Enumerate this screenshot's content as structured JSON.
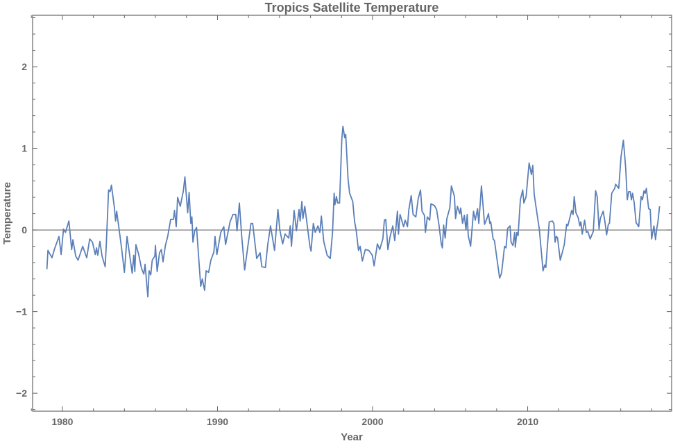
{
  "chart_data": {
    "type": "line",
    "title": "Tropics Satellite Temperature",
    "xlabel": "Year",
    "ylabel": "Temperature",
    "xlim": [
      1978.08,
      2019.28
    ],
    "ylim": [
      -2.22,
      2.63
    ],
    "xticks": [
      1980,
      1990,
      2000,
      2010
    ],
    "xtick_labels": [
      "1980",
      "1990",
      "2000",
      "2010"
    ],
    "yticks": [
      -2,
      -1,
      0,
      1,
      2
    ],
    "ytick_labels": [
      "−2",
      "−1",
      "0",
      "1",
      "2"
    ],
    "grid": false,
    "zero_line": true,
    "line_color": "#5b7fb8",
    "axis_color": "#666666",
    "x": [
      1979.0,
      1979.07,
      1979.33,
      1979.5,
      1979.78,
      1979.92,
      1980.07,
      1980.2,
      1980.42,
      1980.6,
      1980.68,
      1980.86,
      1981.01,
      1981.31,
      1981.57,
      1981.76,
      1981.94,
      1982.12,
      1982.2,
      1982.28,
      1982.42,
      1982.56,
      1982.76,
      1982.83,
      1982.98,
      1983.08,
      1983.16,
      1983.35,
      1983.43,
      1983.5,
      1983.8,
      1984.0,
      1984.17,
      1984.37,
      1984.5,
      1984.6,
      1984.67,
      1984.74,
      1984.92,
      1985.1,
      1985.25,
      1985.33,
      1985.51,
      1985.59,
      1985.7,
      1985.79,
      1985.96,
      1986.0,
      1986.11,
      1986.26,
      1986.38,
      1986.49,
      1986.64,
      1986.79,
      1986.98,
      1987.16,
      1987.23,
      1987.34,
      1987.43,
      1987.6,
      1987.8,
      1987.9,
      1988.08,
      1988.17,
      1988.28,
      1988.35,
      1988.42,
      1988.53,
      1988.65,
      1988.92,
      1989.02,
      1989.17,
      1989.27,
      1989.43,
      1989.57,
      1989.77,
      1989.84,
      1989.96,
      1990.21,
      1990.41,
      1990.52,
      1990.81,
      1991.0,
      1991.18,
      1991.26,
      1991.41,
      1991.56,
      1991.75,
      1991.93,
      1992.16,
      1992.27,
      1992.53,
      1992.75,
      1992.86,
      1993.09,
      1993.24,
      1993.42,
      1993.68,
      1993.9,
      1994.02,
      1994.2,
      1994.36,
      1994.59,
      1994.69,
      1994.77,
      1994.94,
      1995.09,
      1995.26,
      1995.33,
      1995.44,
      1995.51,
      1995.63,
      1995.96,
      1996.03,
      1996.18,
      1996.3,
      1996.48,
      1996.6,
      1996.7,
      1996.85,
      1997.07,
      1997.27,
      1997.42,
      1997.52,
      1997.57,
      1997.67,
      1997.75,
      1997.87,
      1998.02,
      1998.09,
      1998.2,
      1998.27,
      1998.42,
      1998.52,
      1998.72,
      1998.84,
      1998.94,
      1999.09,
      1999.2,
      1999.34,
      1999.53,
      1999.76,
      1999.98,
      2000.1,
      2000.31,
      2000.46,
      2000.66,
      2000.76,
      2000.85,
      2000.99,
      2001.13,
      2001.3,
      2001.43,
      2001.6,
      2001.67,
      2001.77,
      2002.0,
      2002.1,
      2002.25,
      2002.34,
      2002.49,
      2002.61,
      2002.79,
      2002.94,
      2003.09,
      2003.19,
      2003.34,
      2003.41,
      2003.53,
      2003.68,
      2003.76,
      2003.98,
      2004.13,
      2004.28,
      2004.43,
      2004.5,
      2004.58,
      2004.68,
      2004.79,
      2004.98,
      2005.08,
      2005.28,
      2005.35,
      2005.47,
      2005.62,
      2005.68,
      2005.8,
      2005.92,
      2006.02,
      2006.1,
      2006.17,
      2006.32,
      2006.51,
      2006.62,
      2006.77,
      2006.85,
      2007.02,
      2007.22,
      2007.37,
      2007.47,
      2007.56,
      2007.62,
      2007.77,
      2007.86,
      2007.96,
      2008.19,
      2008.31,
      2008.41,
      2008.51,
      2008.6,
      2008.71,
      2008.86,
      2008.93,
      2009.05,
      2009.16,
      2009.2,
      2009.3,
      2009.38,
      2009.53,
      2009.68,
      2009.75,
      2009.9,
      2010.09,
      2010.24,
      2010.33,
      2010.42,
      2010.54,
      2010.75,
      2010.99,
      2011.09,
      2011.17,
      2011.39,
      2011.59,
      2011.69,
      2011.77,
      2011.84,
      2011.92,
      2012.1,
      2012.21,
      2012.36,
      2012.51,
      2012.59,
      2012.84,
      2012.93,
      2013.0,
      2013.11,
      2013.26,
      2013.36,
      2013.43,
      2013.52,
      2013.67,
      2013.78,
      2013.88,
      2014.03,
      2014.23,
      2014.38,
      2014.48,
      2014.6,
      2014.68,
      2014.87,
      2014.98,
      2015.09,
      2015.2,
      2015.27,
      2015.42,
      2015.61,
      2015.67,
      2015.87,
      2016.02,
      2016.17,
      2016.32,
      2016.42,
      2016.51,
      2016.61,
      2016.69,
      2016.76,
      2016.87,
      2016.99,
      2017.16,
      2017.31,
      2017.4,
      2017.5,
      2017.58,
      2017.65,
      2017.8,
      2017.9,
      2017.99,
      2018.14,
      2018.24,
      2018.32,
      2018.4,
      2018.5
    ],
    "y": [
      -0.48,
      -0.25,
      -0.34,
      -0.23,
      -0.08,
      -0.3,
      0.01,
      -0.03,
      0.11,
      -0.24,
      -0.12,
      -0.32,
      -0.37,
      -0.2,
      -0.34,
      -0.11,
      -0.15,
      -0.3,
      -0.22,
      -0.31,
      -0.14,
      -0.32,
      -0.45,
      -0.18,
      0.49,
      0.47,
      0.55,
      0.28,
      0.11,
      0.23,
      -0.2,
      -0.52,
      -0.08,
      -0.35,
      -0.53,
      -0.31,
      -0.51,
      -0.18,
      -0.3,
      -0.47,
      -0.54,
      -0.42,
      -0.82,
      -0.5,
      -0.55,
      -0.37,
      -0.32,
      -0.19,
      -0.51,
      -0.28,
      -0.24,
      -0.39,
      -0.19,
      -0.08,
      0.13,
      0.13,
      0.24,
      0.04,
      0.4,
      0.29,
      0.48,
      0.65,
      0.21,
      0.46,
      0.08,
      0.16,
      -0.15,
      -0.01,
      0.03,
      -0.69,
      -0.6,
      -0.74,
      -0.5,
      -0.52,
      -0.37,
      -0.27,
      -0.08,
      -0.3,
      -0.03,
      0.04,
      -0.18,
      0.1,
      0.19,
      0.19,
      -0.01,
      0.33,
      -0.07,
      -0.49,
      -0.24,
      0.08,
      0.08,
      -0.35,
      -0.28,
      -0.45,
      -0.46,
      -0.18,
      0.05,
      -0.25,
      0.25,
      0.0,
      -0.17,
      -0.05,
      -0.1,
      0.05,
      -0.2,
      0.24,
      -0.01,
      0.25,
      0.11,
      0.35,
      0.14,
      0.29,
      -0.2,
      -0.26,
      0.08,
      -0.03,
      0.05,
      -0.03,
      0.17,
      -0.14,
      -0.31,
      -0.35,
      -0.03,
      0.45,
      0.31,
      0.41,
      0.33,
      0.33,
      1.12,
      1.27,
      1.13,
      1.17,
      0.62,
      0.45,
      0.35,
      0.1,
      0.0,
      -0.25,
      -0.2,
      -0.38,
      -0.24,
      -0.25,
      -0.31,
      -0.44,
      -0.17,
      -0.24,
      -0.11,
      0.12,
      0.13,
      -0.24,
      -0.08,
      0.05,
      -0.13,
      0.23,
      -0.05,
      0.19,
      0.04,
      0.12,
      0.04,
      0.25,
      0.42,
      0.19,
      0.16,
      0.38,
      0.49,
      0.23,
      0.18,
      -0.03,
      0.16,
      0.12,
      0.32,
      0.3,
      0.25,
      0.06,
      -0.17,
      -0.22,
      0.06,
      -0.1,
      0.14,
      0.27,
      0.54,
      0.41,
      0.14,
      0.29,
      0.2,
      0.27,
      0.08,
      0.18,
      0.0,
      0.19,
      -0.07,
      -0.2,
      0.23,
      0.12,
      0.26,
      0.08,
      0.54,
      0.07,
      0.14,
      0.2,
      0.08,
      0.1,
      -0.11,
      -0.13,
      -0.27,
      -0.59,
      -0.53,
      -0.37,
      -0.2,
      -0.22,
      0.02,
      0.05,
      -0.15,
      -0.19,
      -0.03,
      -0.21,
      -0.03,
      -0.07,
      0.37,
      0.49,
      0.33,
      0.41,
      0.82,
      0.68,
      0.79,
      0.44,
      0.28,
      0.01,
      -0.5,
      -0.43,
      -0.46,
      0.1,
      0.11,
      0.08,
      -0.15,
      -0.08,
      -0.09,
      -0.37,
      -0.29,
      -0.18,
      0.07,
      0.05,
      0.24,
      0.19,
      0.41,
      0.21,
      0.15,
      0.05,
      0.1,
      -0.05,
      0.12,
      -0.03,
      -0.02,
      -0.11,
      -0.02,
      0.48,
      0.41,
      0.01,
      0.14,
      0.23,
      0.1,
      -0.06,
      0.07,
      0.08,
      0.45,
      0.51,
      0.56,
      0.51,
      0.9,
      1.1,
      0.76,
      0.37,
      0.47,
      0.47,
      0.37,
      0.45,
      0.33,
      0.09,
      0.04,
      0.41,
      0.37,
      0.48,
      0.45,
      0.51,
      0.26,
      0.25,
      -0.11,
      0.05,
      -0.12,
      0.01,
      0.1,
      0.29
    ]
  }
}
